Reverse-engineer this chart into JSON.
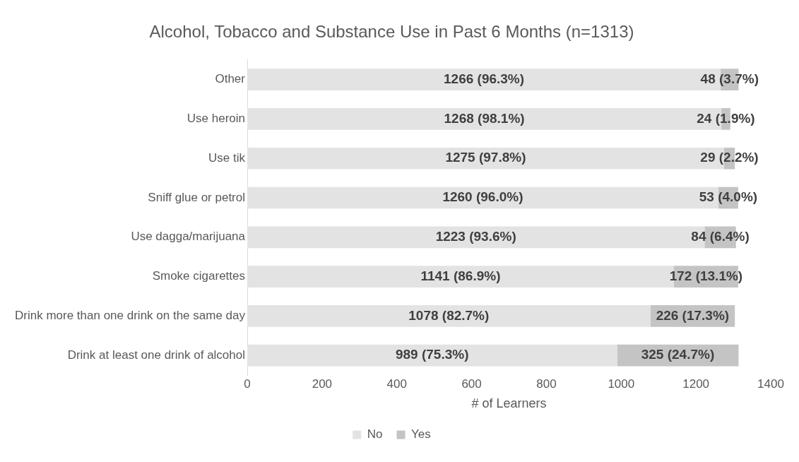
{
  "chart_data": {
    "type": "bar",
    "orientation": "horizontal",
    "stacked": true,
    "title": "Alcohol, Tobacco and Substance Use in Past 6 Months (n=1313)",
    "xlabel": "# of Learners",
    "categories": [
      "Other",
      "Use heroin",
      "Use tik",
      "Sniff glue or petrol",
      "Use dagga/marijuana",
      "Smoke cigarettes",
      "Drink more than one drink on the same day",
      "Drink at least one drink of alcohol"
    ],
    "series": [
      {
        "name": "No",
        "color": "#e3e3e3",
        "values": [
          1266,
          1268,
          1275,
          1260,
          1223,
          1141,
          1078,
          989
        ],
        "value_labels": [
          "1266 (96.3%)",
          "1268 (98.1%)",
          "1275 (97.8%)",
          "1260 (96.0%)",
          "1223 (93.6%)",
          "1141 (86.9%)",
          "1078 (82.7%)",
          "989 (75.3%)"
        ]
      },
      {
        "name": "Yes",
        "color": "#c4c4c4",
        "values": [
          48,
          24,
          29,
          53,
          84,
          172,
          226,
          325
        ],
        "value_labels": [
          "48 (3.7%)",
          "24 (1.9%)",
          "29 (2.2%)",
          "53 (4.0%)",
          "84 (6.4%)",
          "172 (13.1%)",
          "226 (17.3%)",
          "325 (24.7%)"
        ]
      }
    ],
    "xlim": [
      0,
      1400
    ],
    "xticks": [
      0,
      200,
      400,
      600,
      800,
      1000,
      1200,
      1400
    ],
    "grid": false,
    "legend": "bottom"
  }
}
